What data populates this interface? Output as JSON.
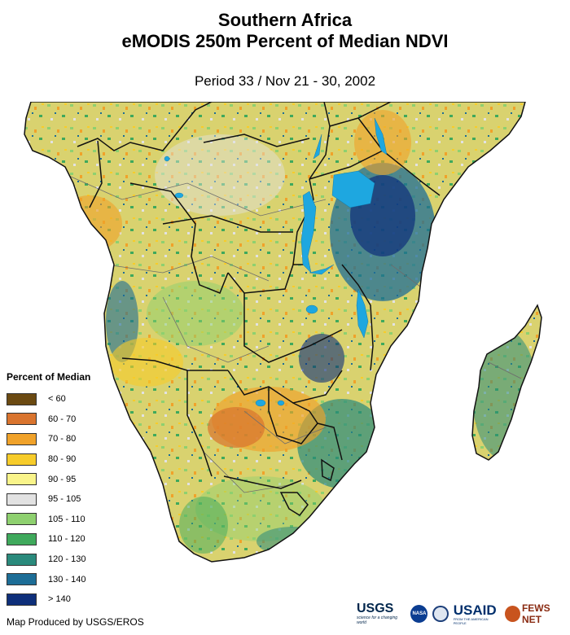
{
  "title": {
    "line1": "Southern Africa",
    "line2": "eMODIS 250m Percent of Median NDVI",
    "period": "Period 33 / Nov 21 - 30, 2002"
  },
  "legend": {
    "title": "Percent of Median",
    "items": [
      {
        "label": "< 60",
        "color": "#6b4a12"
      },
      {
        "label": "60 - 70",
        "color": "#d9742e"
      },
      {
        "label": "70 - 80",
        "color": "#f0a22a"
      },
      {
        "label": "80 - 90",
        "color": "#f7cc2a"
      },
      {
        "label": "90 - 95",
        "color": "#f9f48a"
      },
      {
        "label": "95 - 105",
        "color": "#e2e2e2"
      },
      {
        "label": "105 - 110",
        "color": "#8ed06f"
      },
      {
        "label": "110 - 120",
        "color": "#3fa95c"
      },
      {
        "label": "120 - 130",
        "color": "#2a8a7c"
      },
      {
        "label": "130 - 140",
        "color": "#1d6d96"
      },
      {
        "label": "> 140",
        "color": "#0e2f7a"
      }
    ]
  },
  "credit": "Map Produced by USGS/EROS",
  "logos": {
    "usgs": "USGS",
    "usgs_tagline": "science for a changing world",
    "nasa": "NASA",
    "usaid": "USAID",
    "usaid_tagline": "FROM THE AMERICAN PEOPLE",
    "fews": "FEWS NET"
  },
  "map_colors": {
    "water": "#1ea7e0",
    "border": "#111111",
    "admin": "#6d6d6d"
  }
}
